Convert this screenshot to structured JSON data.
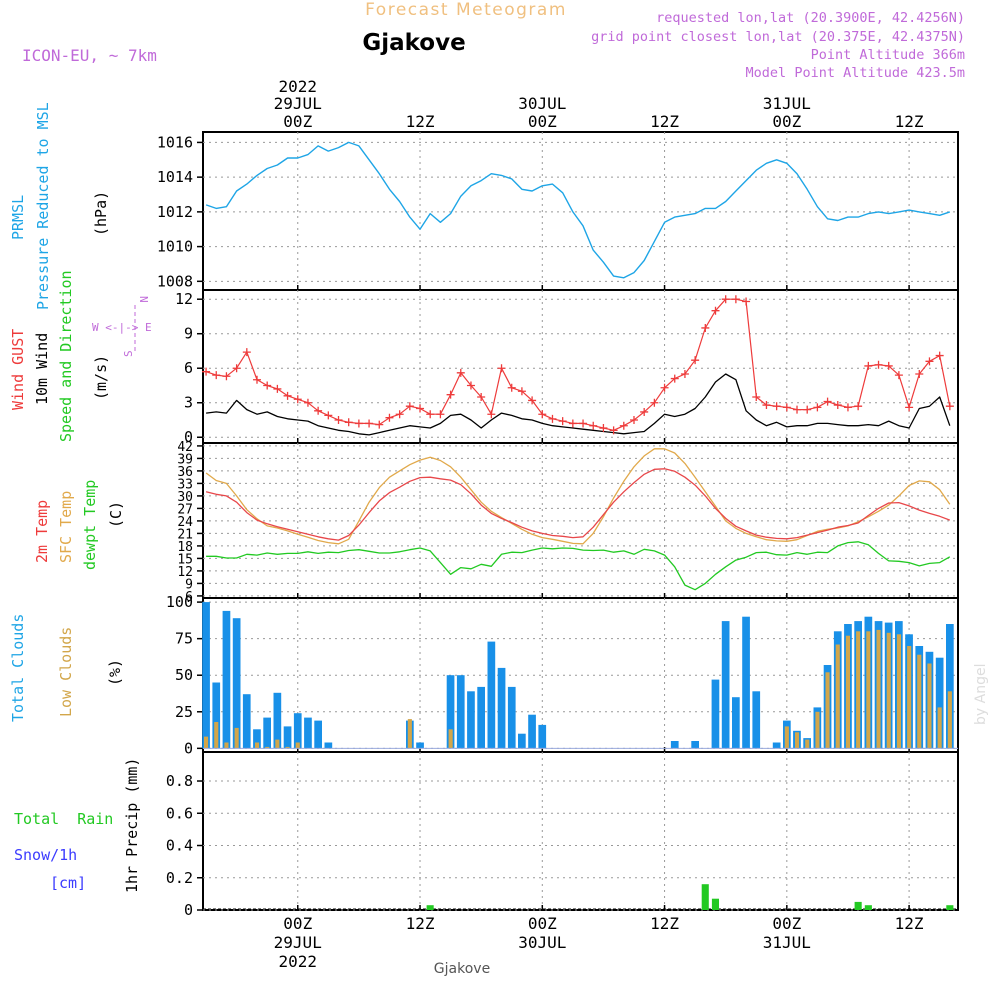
{
  "header": {
    "title_top": "Forecast Meteogram",
    "location": "Gjakove",
    "model": "ICON-EU, ~ 7km",
    "requested": "requested lon,lat (20.3900E, 42.4256N)",
    "grid_point": "grid point closest lon,lat (20.375E, 42.4375N)",
    "point_altitude": "Point Altitude 366m",
    "model_altitude": "Model Point Altitude 423.5m"
  },
  "footer": {
    "location": "Gjakove",
    "credit": "by Angel"
  },
  "time_axis": {
    "ticks": [
      {
        "h": 0,
        "label": "00Z",
        "date": "29JUL",
        "year": "2022"
      },
      {
        "h": 12,
        "label": "12Z",
        "date": "",
        "year": ""
      },
      {
        "h": 24,
        "label": "00Z",
        "date": "30JUL",
        "year": ""
      },
      {
        "h": 36,
        "label": "12Z",
        "date": "",
        "year": ""
      },
      {
        "h": 48,
        "label": "00Z",
        "date": "31JUL",
        "year": ""
      },
      {
        "h": 60,
        "label": "12Z",
        "date": "",
        "year": ""
      }
    ],
    "bottom_year": "2022"
  },
  "panels": {
    "pressure": {
      "labels": [
        "PRMSL",
        "Pressure Reduced to MSL",
        "(hPa)"
      ]
    },
    "wind": {
      "labels": [
        "Wind GUST",
        "10m Wind",
        "Speed and Direction",
        "(m/s)"
      ],
      "compass": [
        "N",
        "W <-|-> E",
        "S"
      ]
    },
    "temp": {
      "labels": [
        "2m Temp",
        "SFC Temp",
        "dewpt Temp",
        "(C)"
      ]
    },
    "clouds": {
      "labels": [
        "Total Clouds",
        "Low Clouds",
        "(%)"
      ]
    },
    "precip": {
      "labels": [
        "Total  Rain",
        "Snow/1h",
        "[cm]",
        "1hr Precip (mm)"
      ]
    }
  },
  "colors": {
    "pressure": "#1ea5e6",
    "gust": "#ee3b3b",
    "wind": "#000000",
    "temp2m": "#e8474a",
    "sfc": "#e1a94b",
    "dewpt": "#22c922",
    "total_clouds": "#1890e8",
    "low_clouds": "#d2a64a",
    "rain": "#22c922",
    "snow": "#3b3bff",
    "info": "#c06ad9",
    "title_top": "#f0c080"
  },
  "chart_data": [
    {
      "type": "line",
      "name": "pressure",
      "ylim": [
        1007.5,
        1016.6
      ],
      "yticks": [
        1008,
        1010,
        1012,
        1014,
        1016
      ],
      "x_hours": [
        -9,
        -8,
        -7,
        -6,
        -5,
        -4,
        -3,
        -2,
        -1,
        0,
        1,
        2,
        3,
        4,
        5,
        6,
        7,
        8,
        9,
        10,
        11,
        12,
        13,
        14,
        15,
        16,
        17,
        18,
        19,
        20,
        21,
        22,
        23,
        24,
        25,
        26,
        27,
        28,
        29,
        30,
        31,
        32,
        33,
        34,
        35,
        36,
        37,
        38,
        39,
        40,
        41,
        42,
        43,
        44,
        45,
        46,
        47,
        48,
        49,
        50,
        51,
        52,
        53,
        54,
        55,
        56,
        57,
        58,
        59,
        60,
        61,
        62,
        63,
        64
      ],
      "values": [
        1012.4,
        1012.2,
        1012.3,
        1013.2,
        1013.6,
        1014.1,
        1014.5,
        1014.7,
        1015.1,
        1015.1,
        1015.3,
        1015.8,
        1015.5,
        1015.7,
        1016.0,
        1015.8,
        1015.0,
        1014.2,
        1013.3,
        1012.6,
        1011.7,
        1011.0,
        1011.9,
        1011.4,
        1011.9,
        1012.9,
        1013.5,
        1013.8,
        1014.2,
        1014.1,
        1013.9,
        1013.3,
        1013.2,
        1013.5,
        1013.6,
        1013.1,
        1012.0,
        1011.2,
        1009.8,
        1009.1,
        1008.3,
        1008.2,
        1008.5,
        1009.2,
        1010.3,
        1011.4,
        1011.7,
        1011.8,
        1011.9,
        1012.2,
        1012.2,
        1012.6,
        1013.2,
        1013.8,
        1014.4,
        1014.8,
        1015.0,
        1014.8,
        1014.2,
        1013.3,
        1012.3,
        1011.6,
        1011.5,
        1011.7,
        1011.7,
        1011.9,
        1012.0,
        1011.9,
        1012.0,
        1012.1,
        1012.0,
        1011.9,
        1011.8,
        1012.0
      ]
    },
    {
      "type": "line",
      "name": "wind",
      "ylim": [
        -0.5,
        12.8
      ],
      "yticks": [
        0,
        3,
        6,
        9,
        12
      ],
      "x_hours": [
        -9,
        -8,
        -7,
        -6,
        -5,
        -4,
        -3,
        -2,
        -1,
        0,
        1,
        2,
        3,
        4,
        5,
        6,
        7,
        8,
        9,
        10,
        11,
        12,
        13,
        14,
        15,
        16,
        17,
        18,
        19,
        20,
        21,
        22,
        23,
        24,
        25,
        26,
        27,
        28,
        29,
        30,
        31,
        32,
        33,
        34,
        35,
        36,
        37,
        38,
        39,
        40,
        41,
        42,
        43,
        44,
        45,
        46,
        47,
        48,
        49,
        50,
        51,
        52,
        53,
        54,
        55,
        56,
        57,
        58,
        59,
        60,
        61,
        62,
        63,
        64
      ],
      "gust": [
        5.7,
        5.4,
        5.3,
        6.0,
        7.4,
        5.0,
        4.5,
        4.2,
        3.6,
        3.3,
        3.0,
        2.3,
        1.9,
        1.5,
        1.3,
        1.2,
        1.2,
        1.1,
        1.7,
        2.0,
        2.7,
        2.5,
        2.0,
        2.0,
        3.7,
        5.6,
        4.5,
        3.5,
        2.0,
        6.0,
        4.3,
        4.0,
        3.2,
        2.0,
        1.6,
        1.4,
        1.2,
        1.2,
        1.0,
        0.8,
        0.6,
        1.0,
        1.5,
        2.2,
        3.0,
        4.3,
        5.1,
        5.5,
        6.7,
        9.5,
        11.0,
        12.0,
        12.0,
        11.8,
        3.5,
        2.8,
        2.7,
        2.6,
        2.4,
        2.4,
        2.6,
        3.1,
        2.8,
        2.6,
        2.7,
        6.2,
        6.3,
        6.2,
        5.4,
        2.6,
        5.5,
        6.6,
        7.1,
        2.7
      ],
      "wind": [
        2.1,
        2.2,
        2.1,
        3.2,
        2.4,
        2.0,
        2.2,
        1.8,
        1.6,
        1.5,
        1.4,
        1.0,
        0.8,
        0.6,
        0.5,
        0.3,
        0.2,
        0.4,
        0.6,
        0.8,
        1.0,
        0.9,
        0.8,
        1.2,
        1.9,
        2.0,
        1.5,
        0.8,
        1.5,
        2.1,
        1.9,
        1.6,
        1.5,
        1.2,
        1.0,
        0.9,
        0.8,
        0.7,
        0.6,
        0.5,
        0.4,
        0.3,
        0.4,
        0.5,
        1.2,
        2.0,
        1.8,
        2.0,
        2.5,
        3.5,
        4.8,
        5.5,
        5.0,
        2.3,
        1.5,
        1.0,
        1.3,
        0.9,
        1.0,
        1.0,
        1.2,
        1.2,
        1.1,
        1.0,
        1.0,
        1.1,
        1.0,
        1.4,
        1.0,
        0.8,
        2.5,
        2.7,
        3.5,
        1.0
      ]
    },
    {
      "type": "line",
      "name": "temperature",
      "ylim": [
        5.5,
        42.7
      ],
      "yticks": [
        6,
        9,
        12,
        15,
        18,
        21,
        24,
        27,
        30,
        33,
        36,
        39,
        42
      ],
      "x_hours": [
        -9,
        -8,
        -7,
        -6,
        -5,
        -4,
        -3,
        -2,
        -1,
        0,
        1,
        2,
        3,
        4,
        5,
        6,
        7,
        8,
        9,
        10,
        11,
        12,
        13,
        14,
        15,
        16,
        17,
        18,
        19,
        20,
        21,
        22,
        23,
        24,
        25,
        26,
        27,
        28,
        29,
        30,
        31,
        32,
        33,
        34,
        35,
        36,
        37,
        38,
        39,
        40,
        41,
        42,
        43,
        44,
        45,
        46,
        47,
        48,
        49,
        50,
        51,
        52,
        53,
        54,
        55,
        56,
        57,
        58,
        59,
        60,
        61,
        62,
        63,
        64
      ],
      "t2m": [
        31.0,
        30.4,
        30.0,
        28.5,
        26.0,
        24.2,
        23.3,
        22.6,
        22.0,
        21.4,
        20.8,
        20.2,
        19.7,
        19.4,
        20.5,
        23.0,
        26.0,
        28.8,
        30.8,
        32.1,
        33.5,
        34.4,
        34.5,
        34.1,
        33.8,
        32.7,
        30.5,
        27.8,
        25.8,
        24.6,
        23.6,
        22.5,
        21.6,
        21.0,
        20.5,
        20.3,
        20.0,
        20.2,
        22.5,
        25.5,
        28.5,
        31.0,
        33.2,
        35.2,
        36.4,
        36.5,
        35.9,
        34.5,
        32.6,
        30.0,
        27.0,
        24.6,
        22.7,
        21.6,
        20.6,
        20.1,
        19.8,
        19.7,
        20.0,
        20.6,
        21.2,
        21.8,
        22.5,
        22.9,
        23.5,
        25.3,
        27.0,
        28.3,
        28.4,
        27.6,
        26.6,
        25.8,
        25.1,
        24.2
      ],
      "sfc": [
        35.5,
        33.7,
        33.0,
        30.0,
        26.7,
        24.5,
        22.8,
        22.3,
        21.6,
        20.8,
        20.1,
        19.3,
        18.8,
        18.5,
        19.6,
        24.0,
        28.5,
        32.0,
        34.5,
        36.0,
        37.5,
        38.6,
        39.3,
        38.5,
        37.0,
        34.5,
        31.5,
        28.5,
        26.3,
        24.8,
        23.4,
        22.0,
        20.8,
        20.0,
        19.6,
        19.1,
        18.6,
        18.5,
        21.0,
        25.0,
        29.5,
        33.5,
        37.0,
        39.6,
        41.3,
        41.3,
        40.3,
        37.8,
        34.5,
        31.0,
        27.5,
        24.0,
        22.2,
        21.0,
        20.2,
        19.5,
        19.2,
        19.1,
        19.5,
        20.5,
        21.5,
        22.0,
        22.3,
        22.8,
        23.8,
        25.0,
        26.3,
        27.8,
        30.0,
        32.5,
        33.6,
        33.4,
        31.5,
        28.0
      ],
      "dewpt": [
        15.5,
        15.5,
        15.1,
        15.1,
        16.0,
        15.8,
        16.3,
        16.0,
        16.2,
        16.2,
        16.6,
        16.2,
        16.5,
        16.4,
        16.9,
        17.1,
        16.7,
        16.3,
        16.3,
        16.6,
        17.1,
        17.5,
        16.8,
        14.0,
        11.2,
        12.8,
        12.5,
        13.6,
        13.1,
        16.0,
        16.5,
        16.4,
        17.0,
        17.5,
        17.3,
        17.5,
        17.4,
        17.0,
        16.9,
        17.0,
        16.5,
        16.8,
        16.0,
        17.2,
        16.8,
        15.8,
        13.0,
        8.6,
        7.5,
        9.0,
        11.2,
        13.0,
        14.6,
        15.3,
        16.4,
        16.5,
        15.9,
        15.8,
        16.4,
        16.0,
        16.5,
        16.4,
        18.0,
        18.8,
        19.0,
        18.3,
        16.2,
        14.4,
        14.3,
        14.0,
        13.2,
        13.8,
        14.0,
        15.4
      ]
    },
    {
      "type": "bar",
      "name": "clouds",
      "ylim": [
        -2.5,
        102.8
      ],
      "yticks": [
        0,
        25,
        50,
        75,
        100
      ],
      "x_hours": [
        -9,
        -8,
        -7,
        -6,
        -5,
        -4,
        -3,
        -2,
        -1,
        0,
        1,
        2,
        3,
        4,
        5,
        6,
        7,
        8,
        9,
        10,
        11,
        12,
        13,
        14,
        15,
        16,
        17,
        18,
        19,
        20,
        21,
        22,
        23,
        24,
        25,
        26,
        27,
        28,
        29,
        30,
        31,
        32,
        33,
        34,
        35,
        36,
        37,
        38,
        39,
        40,
        41,
        42,
        43,
        44,
        45,
        46,
        47,
        48,
        49,
        50,
        51,
        52,
        53,
        54,
        55,
        56,
        57,
        58,
        59,
        60,
        61,
        62,
        63,
        64
      ],
      "total": [
        100,
        45,
        94,
        89,
        37,
        13,
        21,
        38,
        15,
        24,
        21,
        19,
        4,
        0,
        0,
        0,
        0,
        0,
        0,
        0,
        19,
        4,
        0,
        0,
        50,
        50,
        39,
        42,
        73,
        55,
        42,
        10,
        23,
        16,
        0,
        0,
        0,
        0,
        0,
        0,
        0,
        0,
        0,
        0,
        0,
        0,
        5,
        0,
        5,
        0,
        47,
        87,
        35,
        90,
        39,
        0,
        4,
        19,
        12,
        7,
        28,
        57,
        80,
        85,
        87,
        90,
        87,
        86,
        87,
        78,
        70,
        66,
        62,
        85
      ],
      "low": [
        8,
        18,
        4,
        14,
        0,
        4,
        1,
        6,
        1,
        4,
        0,
        0,
        0,
        0,
        0,
        0,
        0,
        0,
        0,
        0,
        20,
        0,
        0,
        0,
        13,
        0,
        0,
        0,
        0,
        0,
        0,
        0,
        0,
        0,
        0,
        0,
        0,
        0,
        0,
        0,
        0,
        0,
        0,
        0,
        0,
        0,
        0,
        0,
        0,
        0,
        0,
        0,
        0,
        0,
        0,
        0,
        0,
        15,
        11,
        6,
        25,
        52,
        71,
        77,
        80,
        80,
        81,
        79,
        78,
        70,
        64,
        58,
        28,
        39
      ]
    },
    {
      "type": "bar",
      "name": "precipitation",
      "ylim": [
        0,
        0.98
      ],
      "yticks": [
        0,
        0.2,
        0.4,
        0.6,
        0.8
      ],
      "ytick_labels": [
        "0",
        "0.2",
        "0.4",
        "0.6",
        "0.8"
      ],
      "rain": [
        {
          "h": 13,
          "v": 0.03
        },
        {
          "h": 40,
          "v": 0.16
        },
        {
          "h": 41,
          "v": 0.07
        },
        {
          "h": 55,
          "v": 0.05
        },
        {
          "h": 56,
          "v": 0.03
        },
        {
          "h": 64,
          "v": 0.03
        }
      ],
      "snow": []
    }
  ]
}
